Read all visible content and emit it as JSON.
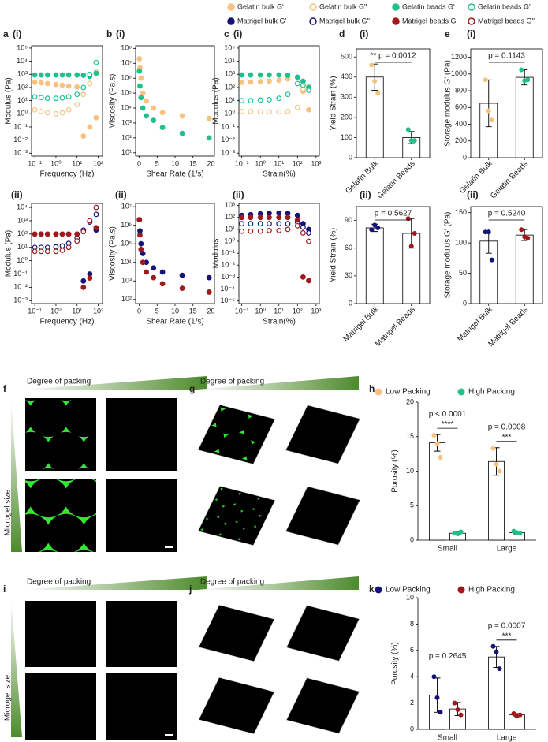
{
  "legend": [
    {
      "name": "Gelatin bulk G'",
      "color": "#f7c27f",
      "marker": "filled"
    },
    {
      "name": "Gelatin bulk G''",
      "color": "#f7c27f",
      "marker": "open"
    },
    {
      "name": "Gelatin beads G'",
      "color": "#21c08b",
      "marker": "filled"
    },
    {
      "name": "Gelatin beads G''",
      "color": "#21c08b",
      "marker": "open"
    },
    {
      "name": "Matrigel bulk G'",
      "color": "#141478",
      "marker": "filled"
    },
    {
      "name": "Matrigel bulk G''",
      "color": "#141478",
      "marker": "open"
    },
    {
      "name": "Matrigel beads G'",
      "color": "#a0191b",
      "marker": "filled"
    },
    {
      "name": "Matrigel beads G''",
      "color": "#a0191b",
      "marker": "open"
    }
  ],
  "chart_data": [
    {
      "type": "scatter",
      "panel": "a",
      "subpanel": "(i)",
      "xlabel": "Frequency (Hz)",
      "ylabel": "Modulus (Pa)",
      "xscale": "log",
      "yscale": "log",
      "xlim": [
        0.07,
        160
      ],
      "ylim": [
        0.0006,
        150000
      ],
      "xticks": [
        {
          "value": 0.1,
          "label": "10⁻¹"
        },
        {
          "value": 1,
          "label": "10⁰"
        },
        {
          "value": 10,
          "label": "10¹"
        },
        {
          "value": 100,
          "label": "10²"
        }
      ],
      "yticks": [
        {
          "value": 0.001,
          "label": "10⁻³"
        },
        {
          "value": 0.01,
          "label": "10⁻²"
        },
        {
          "value": 0.1,
          "label": "10⁻¹"
        },
        {
          "value": 1,
          "label": "10⁰"
        },
        {
          "value": 10,
          "label": "10¹"
        },
        {
          "value": 100,
          "label": "10²"
        },
        {
          "value": 1000,
          "label": "10³"
        },
        {
          "value": 10000,
          "label": "10⁴"
        },
        {
          "value": 100000,
          "label": "10⁵"
        }
      ],
      "x": [
        0.1,
        0.2,
        0.4,
        1,
        2,
        4,
        10,
        20,
        40,
        80
      ],
      "series": [
        {
          "color": "#f7c27f",
          "marker": "filled",
          "values": [
            250,
            230,
            200,
            170,
            150,
            130,
            110,
            0.02,
            0.1,
            0.5
          ]
        },
        {
          "color": "#f7c27f",
          "marker": "open",
          "values": [
            2,
            1.5,
            1.2,
            1,
            1.2,
            2,
            5,
            30,
            200,
            1500
          ]
        },
        {
          "color": "#21c08b",
          "marker": "filled",
          "values": [
            900,
            900,
            900,
            900,
            900,
            900,
            900,
            850,
            700,
            1200
          ]
        },
        {
          "color": "#21c08b",
          "marker": "open",
          "values": [
            20,
            17,
            15,
            15,
            16,
            20,
            30,
            100,
            1000,
            8000
          ]
        }
      ]
    },
    {
      "type": "scatter",
      "subpanel": "(ii)",
      "xlabel": "Frequency (Hz)",
      "ylabel": "Modulus (Pa)",
      "xscale": "log",
      "yscale": "log",
      "xlim": [
        0.07,
        160
      ],
      "ylim": [
        0.0006,
        20000
      ],
      "xticks": [
        {
          "value": 0.1,
          "label": "10⁻¹"
        },
        {
          "value": 1,
          "label": "10⁰"
        },
        {
          "value": 10,
          "label": "10¹"
        },
        {
          "value": 100,
          "label": "10²"
        }
      ],
      "yticks": [
        {
          "value": 0.001,
          "label": "10⁻³"
        },
        {
          "value": 0.01,
          "label": "10⁻²"
        },
        {
          "value": 0.1,
          "label": "10⁻¹"
        },
        {
          "value": 1,
          "label": "10⁰"
        },
        {
          "value": 10,
          "label": "10¹"
        },
        {
          "value": 100,
          "label": "10²"
        },
        {
          "value": 1000,
          "label": "10³"
        },
        {
          "value": 10000,
          "label": "10⁴"
        }
      ],
      "x": [
        0.1,
        0.2,
        0.4,
        1,
        2,
        4,
        10,
        20,
        40,
        80
      ],
      "series": [
        {
          "color": "#141478",
          "marker": "filled",
          "values": [
            100,
            100,
            100,
            100,
            100,
            100,
            100,
            0.03,
            0.1,
            200
          ]
        },
        {
          "color": "#141478",
          "marker": "open",
          "values": [
            10,
            10,
            10,
            11,
            13,
            20,
            50,
            200,
            800,
            3000
          ]
        },
        {
          "color": "#a0191b",
          "marker": "filled",
          "values": [
            100,
            100,
            100,
            100,
            100,
            100,
            100,
            0.01,
            0.05,
            300
          ]
        },
        {
          "color": "#a0191b",
          "marker": "open",
          "values": [
            5,
            5,
            5,
            5,
            6,
            10,
            30,
            150,
            1000,
            10000
          ]
        }
      ]
    },
    {
      "type": "scatter",
      "panel": "b",
      "subpanel": "(i)",
      "xlabel": "Shear Rate (1/s)",
      "ylabel": "Viscosity (Pa.s)",
      "xscale": "linear",
      "yscale": "log",
      "xlim": [
        -1,
        21
      ],
      "ylim": [
        6,
        150000000
      ],
      "xticks": [
        0,
        5,
        10,
        15,
        20
      ],
      "yticks": [
        {
          "value": 10,
          "label": "10¹"
        },
        {
          "value": 100,
          "label": "10²"
        },
        {
          "value": 1000,
          "label": "10³"
        },
        {
          "value": 10000,
          "label": "10⁴"
        },
        {
          "value": 100000,
          "label": "10⁵"
        },
        {
          "value": 1000000,
          "label": "10⁶"
        },
        {
          "value": 10000000,
          "label": "10⁷"
        },
        {
          "value": 100000000,
          "label": "10⁸"
        }
      ],
      "x": [
        0.05,
        0.2,
        0.5,
        1,
        2,
        4,
        6.5,
        12,
        19.5
      ],
      "series": [
        {
          "color": "#f7c27f",
          "marker": "filled",
          "values": [
            20000000,
            5000000,
            1000000,
            100000,
            30000,
            10000,
            5000,
            3000,
            2000
          ]
        },
        {
          "color": "#21c08b",
          "marker": "filled",
          "values": [
            3000000,
            300000,
            50000,
            10000,
            3000,
            1500,
            500,
            200,
            100
          ]
        }
      ]
    },
    {
      "type": "scatter",
      "subpanel": "(ii)",
      "xlabel": "Shear Rate (1/s)",
      "ylabel": "Viscosity (Pa.s)",
      "xscale": "linear",
      "yscale": "log",
      "xlim": [
        -1,
        21
      ],
      "ylim": [
        60,
        15000000
      ],
      "xticks": [
        0,
        5,
        10,
        15,
        20
      ],
      "yticks": [
        {
          "value": 100,
          "label": "10²"
        },
        {
          "value": 1000,
          "label": "10³"
        },
        {
          "value": 10000,
          "label": "10⁴"
        },
        {
          "value": 100000,
          "label": "10⁵"
        },
        {
          "value": 1000000,
          "label": "10⁶"
        },
        {
          "value": 10000000,
          "label": "10⁷"
        }
      ],
      "x": [
        0.05,
        0.2,
        0.5,
        1,
        2,
        4,
        6.5,
        12,
        19.5
      ],
      "series": [
        {
          "color": "#141478",
          "marker": "filled",
          "values": [
            2000000,
            500000,
            100000,
            30000,
            10000,
            5000,
            3000,
            2000,
            1500
          ]
        },
        {
          "color": "#a0191b",
          "marker": "filled",
          "values": [
            2000000,
            300000,
            50000,
            10000,
            3000,
            1500,
            700,
            400,
            250
          ]
        }
      ]
    },
    {
      "type": "scatter",
      "panel": "c",
      "subpanel": "(i)",
      "xlabel": "Strain(%)",
      "ylabel": "Modulus (Pa)",
      "xscale": "log",
      "yscale": "log",
      "xlim": [
        0.07,
        1500
      ],
      "ylim": [
        0.0006,
        150000
      ],
      "xticks": [
        {
          "value": 0.1,
          "label": "10⁻¹"
        },
        {
          "value": 1,
          "label": "10⁰"
        },
        {
          "value": 10,
          "label": "10¹"
        },
        {
          "value": 100,
          "label": "10²"
        },
        {
          "value": 1000,
          "label": "10³"
        }
      ],
      "yticks": [
        {
          "value": 0.001,
          "label": "10⁻³"
        },
        {
          "value": 0.01,
          "label": "10⁻²"
        },
        {
          "value": 0.1,
          "label": "10⁻¹"
        },
        {
          "value": 1,
          "label": "10⁰"
        },
        {
          "value": 10,
          "label": "10¹"
        },
        {
          "value": 100,
          "label": "10²"
        },
        {
          "value": 1000,
          "label": "10³"
        },
        {
          "value": 10000,
          "label": "10⁴"
        },
        {
          "value": 100000,
          "label": "10⁵"
        }
      ],
      "x": [
        0.1,
        0.3,
        1,
        3,
        10,
        30,
        100,
        200,
        400
      ],
      "series": [
        {
          "color": "#f7c27f",
          "marker": "filled",
          "values": [
            250,
            260,
            280,
            300,
            350,
            450,
            600,
            50,
            2
          ]
        },
        {
          "color": "#f7c27f",
          "marker": "open",
          "values": [
            1.5,
            1.5,
            1.4,
            1.4,
            1.4,
            1.5,
            3,
            80,
            120
          ]
        },
        {
          "color": "#21c08b",
          "marker": "filled",
          "values": [
            900,
            900,
            900,
            900,
            900,
            850,
            600,
            300,
            100
          ]
        },
        {
          "color": "#21c08b",
          "marker": "open",
          "values": [
            10,
            10,
            11,
            12,
            15,
            30,
            200,
            150,
            60
          ]
        }
      ]
    },
    {
      "type": "scatter",
      "subpanel": "(ii)",
      "xlabel": "Strain(%)",
      "ylabel": "Modulus",
      "xscale": "log",
      "yscale": "log",
      "xlim": [
        0.07,
        1500
      ],
      "ylim": [
        6e-06,
        1500
      ],
      "xticks": [
        {
          "value": 0.1,
          "label": "10⁻¹"
        },
        {
          "value": 1,
          "label": "10⁰"
        },
        {
          "value": 10,
          "label": "10¹"
        },
        {
          "value": 100,
          "label": "10²"
        },
        {
          "value": 1000,
          "label": "10³"
        }
      ],
      "yticks": [
        {
          "value": 1e-05,
          "label": "10⁻⁵"
        },
        {
          "value": 0.0001,
          "label": "10⁻⁴"
        },
        {
          "value": 0.001,
          "label": "10⁻³"
        },
        {
          "value": 0.01,
          "label": "10⁻²"
        },
        {
          "value": 0.1,
          "label": "10⁻¹"
        },
        {
          "value": 1,
          "label": "10⁰"
        },
        {
          "value": 10,
          "label": "10¹"
        },
        {
          "value": 100,
          "label": "10²"
        },
        {
          "value": 1000,
          "label": "10³"
        }
      ],
      "x": [
        0.1,
        0.3,
        1,
        3,
        10,
        30,
        100,
        200,
        400
      ],
      "series": [
        {
          "color": "#141478",
          "marker": "filled",
          "values": [
            150,
            170,
            200,
            220,
            230,
            220,
            150,
            30,
            10
          ]
        },
        {
          "color": "#141478",
          "marker": "open",
          "values": [
            30,
            30,
            30,
            30,
            30,
            30,
            40,
            15,
            5
          ]
        },
        {
          "color": "#a0191b",
          "marker": "filled",
          "values": [
            100,
            100,
            100,
            100,
            100,
            100,
            60,
            0.001,
            0.0005
          ]
        },
        {
          "color": "#a0191b",
          "marker": "open",
          "values": [
            7,
            7,
            7,
            8,
            8,
            10,
            20,
            5,
            1
          ]
        }
      ]
    },
    {
      "type": "bar",
      "panel": "d",
      "subpanel": "(i)",
      "ylabel": "Yield Strain (%)",
      "categories": [
        "Gelatin Bulk",
        "Gelatin Beads"
      ],
      "values": [
        400,
        100
      ],
      "errors": [
        65,
        30
      ],
      "points": [
        [
          460,
          380,
          320
        ],
        [
          140,
          85,
          85
        ]
      ],
      "point_colors": [
        "#f7c27f",
        "#21c08b"
      ],
      "ylim": [
        0,
        540
      ],
      "yticks": [
        0,
        100,
        200,
        300,
        400,
        500
      ],
      "annotation": "** p = 0.0012"
    },
    {
      "type": "bar",
      "subpanel": "(ii)",
      "ylabel": "Yield Strain (%)",
      "categories": [
        "Matrigel Bulk",
        "Matrigel Beads"
      ],
      "values": [
        82,
        76
      ],
      "errors": [
        4,
        16
      ],
      "points": [
        [
          80,
          85,
          82
        ],
        [
          92,
          62,
          76
        ]
      ],
      "point_colors": [
        "#141478",
        "#a0191b"
      ],
      "ylim": [
        0,
        105
      ],
      "yticks": [
        0,
        30,
        60,
        90
      ],
      "annotation": "p = 0.5627"
    },
    {
      "type": "bar",
      "panel": "e",
      "subpanel": "(i)",
      "ylabel": "Storage modulus G' (Pa)",
      "categories": [
        "Gelatin Bulk",
        "Gelatin Beads"
      ],
      "values": [
        650,
        960
      ],
      "errors": [
        280,
        90
      ],
      "points": [
        [
          930,
          560,
          450
        ],
        [
          1050,
          920,
          930
        ]
      ],
      "point_colors": [
        "#f7c27f",
        "#21c08b"
      ],
      "ylim": [
        0,
        1300
      ],
      "yticks": [
        0,
        200,
        400,
        600,
        800,
        1000,
        1200
      ],
      "annotation": "p = 0.1143"
    },
    {
      "type": "bar",
      "subpanel": "(ii)",
      "ylabel": "Storage modulus G' (Pa)",
      "categories": [
        "Matrigel Bulk",
        "Matrigel Beads"
      ],
      "values": [
        103,
        113
      ],
      "errors": [
        20,
        9
      ],
      "points": [
        [
          118,
          118,
          72
        ],
        [
          122,
          110,
          108
        ]
      ],
      "point_colors": [
        "#141478",
        "#a0191b"
      ],
      "ylim": [
        0,
        160
      ],
      "yticks": [
        0,
        50,
        100,
        150
      ],
      "annotation": "p = 0.5240"
    },
    {
      "type": "grouped_bar",
      "panel": "h",
      "ylabel": "Porosity (%)",
      "categories": [
        "Small",
        "Large"
      ],
      "ylim": [
        0,
        20
      ],
      "yticks": [
        0,
        5,
        10,
        15,
        20
      ],
      "series": [
        {
          "name": "Low Packing",
          "color": "#f7c27f",
          "values": [
            14.1,
            11.4
          ],
          "errors": [
            1.2,
            2.0
          ],
          "points": [
            [
              15.2,
              14,
              12
            ],
            [
              13.3,
              11,
              10
            ]
          ]
        },
        {
          "name": "High Packing",
          "color": "#21c08b",
          "values": [
            1.0,
            1.1
          ],
          "errors": [
            0.2,
            0.2
          ],
          "points": [
            [
              1.0,
              0.9,
              1.2
            ],
            [
              1.3,
              1.1,
              1.0
            ]
          ]
        }
      ],
      "annotations": [
        {
          "text": "p < 0.0001",
          "stars": "****"
        },
        {
          "text": "p = 0.0008",
          "stars": "***"
        }
      ]
    },
    {
      "type": "grouped_bar",
      "panel": "k",
      "ylabel": "Porosity (%)",
      "categories": [
        "Small",
        "Large"
      ],
      "ylim": [
        0,
        10
      ],
      "yticks": [
        0,
        2,
        4,
        6,
        8,
        10
      ],
      "series": [
        {
          "name": "Low Packing",
          "color": "#141478",
          "values": [
            2.6,
            5.5
          ],
          "errors": [
            1.3,
            0.8
          ],
          "points": [
            [
              4.0,
              2.4,
              1.3
            ],
            [
              6.3,
              5.9,
              4.6
            ]
          ]
        },
        {
          "name": "High Packing",
          "color": "#a0191b",
          "values": [
            1.55,
            1.1
          ],
          "errors": [
            0.5,
            0.1
          ],
          "points": [
            [
              2.0,
              1.5,
              1.1
            ],
            [
              1.2,
              1.0,
              1.1
            ]
          ]
        }
      ],
      "annotations": [
        {
          "text": "p = 0.2645"
        },
        {
          "text": "p = 0.0007",
          "stars": "***"
        }
      ]
    }
  ],
  "figure_panels": [
    {
      "panel": "f",
      "header": "Degree of packing",
      "side": "Microgel size"
    },
    {
      "panel": "g",
      "header": "Degree of packing"
    },
    {
      "panel": "i",
      "header": "Degree of packing",
      "side": "Microgel size"
    },
    {
      "panel": "j",
      "header": "Degree of packing"
    }
  ]
}
